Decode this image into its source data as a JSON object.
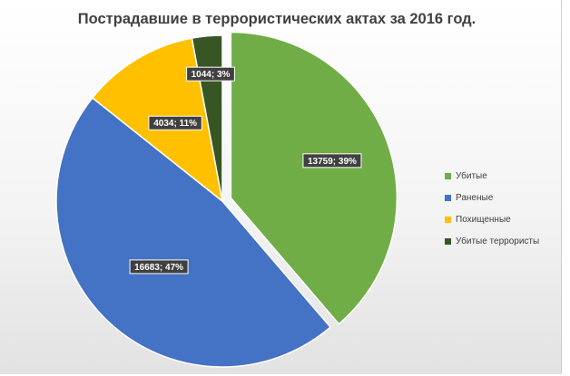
{
  "chart_data": {
    "type": "pie",
    "title": "Пострадавшие  в террористических актах за 2016 год.",
    "categories": [
      "Убитые",
      "Раненые",
      "Похищенные",
      "Убитые террористы"
    ],
    "values": [
      13759,
      16683,
      4034,
      1044
    ],
    "percents": [
      39,
      47,
      11,
      3
    ],
    "data_labels": [
      "13759; 39%",
      "16683; 47%",
      "4034; 11%",
      "1044; 3%"
    ],
    "colors": [
      "#70ad47",
      "#4472c4",
      "#ffc000",
      "#375623"
    ],
    "legend_position": "right",
    "exploded": [
      "Убитые"
    ]
  }
}
